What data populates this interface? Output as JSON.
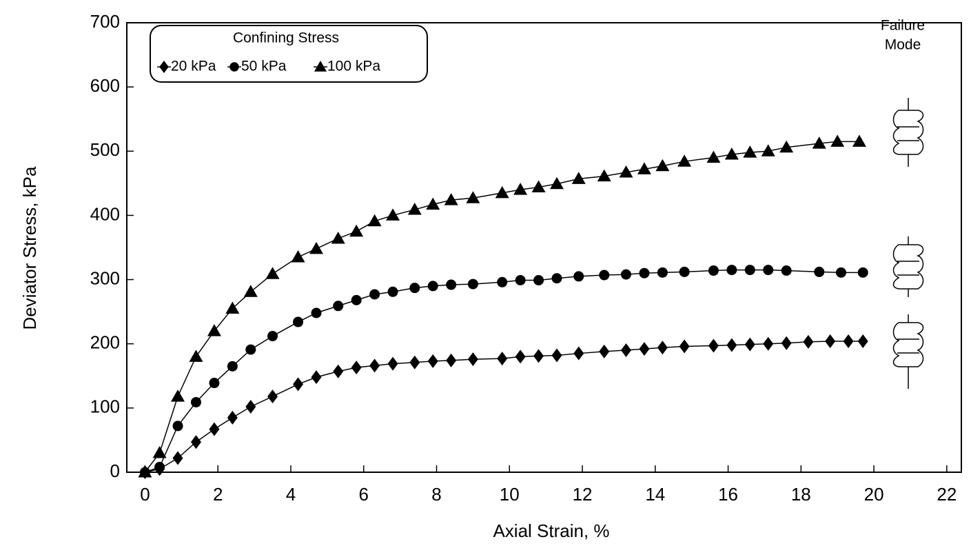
{
  "chart_data": {
    "type": "line",
    "x_label": "Axial Strain, %",
    "y_label": "Deviator Stress, kPa",
    "legend_title": "Confining Stress",
    "annotation": [
      "Failure",
      "Mode"
    ],
    "xlim": [
      -0.5,
      22.4
    ],
    "xticks": [
      0,
      2,
      4,
      6,
      8,
      10,
      12,
      14,
      16,
      18,
      20,
      22
    ],
    "ylim": [
      0,
      700
    ],
    "yticks": [
      0,
      100,
      200,
      300,
      400,
      500,
      600,
      700
    ],
    "grid": false,
    "legend": "upper left",
    "series": [
      {
        "name": "20 kPa",
        "color": "#000000",
        "marker": "diamond",
        "x": [
          0,
          0.4,
          0.9,
          1.4,
          1.9,
          2.4,
          2.9,
          3.5,
          4.2,
          4.7,
          5.3,
          5.8,
          6.3,
          6.8,
          7.4,
          7.9,
          8.4,
          9.0,
          9.8,
          10.3,
          10.8,
          11.3,
          11.9,
          12.6,
          13.2,
          13.7,
          14.2,
          14.8,
          15.6,
          16.1,
          16.6,
          17.1,
          17.6,
          18.2,
          18.8,
          19.3,
          19.7
        ],
        "values": [
          0,
          5,
          22,
          47,
          67,
          85,
          102,
          118,
          137,
          148,
          157,
          163,
          166,
          169,
          171,
          173,
          174,
          176,
          177,
          180,
          181,
          182,
          185,
          188,
          190,
          192,
          194,
          196,
          197,
          198,
          199,
          200,
          201,
          203,
          204,
          204,
          204
        ]
      },
      {
        "name": "50 kPa",
        "color": "#000000",
        "marker": "circle",
        "x": [
          0,
          0.4,
          0.9,
          1.4,
          1.9,
          2.4,
          2.9,
          3.5,
          4.2,
          4.7,
          5.3,
          5.8,
          6.3,
          6.8,
          7.4,
          7.9,
          8.4,
          9.0,
          9.8,
          10.3,
          10.8,
          11.3,
          11.9,
          12.6,
          13.2,
          13.7,
          14.2,
          14.8,
          15.6,
          16.1,
          16.6,
          17.1,
          17.6,
          18.5,
          19.1,
          19.7
        ],
        "values": [
          0,
          8,
          72,
          109,
          139,
          165,
          191,
          212,
          234,
          248,
          259,
          268,
          277,
          281,
          287,
          290,
          292,
          293,
          296,
          299,
          299,
          302,
          305,
          307,
          308,
          310,
          311,
          312,
          314,
          315,
          315,
          315,
          314,
          312,
          311,
          311
        ]
      },
      {
        "name": "100 kPa",
        "color": "#000000",
        "marker": "triangle",
        "x": [
          0,
          0.4,
          0.9,
          1.4,
          1.9,
          2.4,
          2.9,
          3.5,
          4.2,
          4.7,
          5.3,
          5.8,
          6.3,
          6.8,
          7.4,
          7.9,
          8.4,
          9.0,
          9.8,
          10.3,
          10.8,
          11.3,
          11.9,
          12.6,
          13.2,
          13.7,
          14.2,
          14.8,
          15.6,
          16.1,
          16.6,
          17.1,
          17.6,
          18.5,
          19.0,
          19.6
        ],
        "values": [
          0,
          30,
          118,
          180,
          220,
          255,
          281,
          309,
          335,
          348,
          364,
          375,
          391,
          400,
          409,
          417,
          424,
          427,
          435,
          440,
          444,
          449,
          457,
          461,
          467,
          472,
          477,
          484,
          490,
          495,
          498,
          500,
          506,
          512,
          515,
          515
        ]
      }
    ]
  }
}
